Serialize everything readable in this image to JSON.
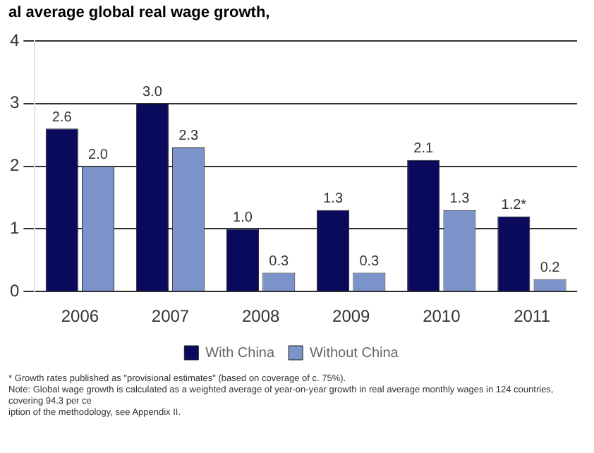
{
  "chart_data": {
    "type": "bar",
    "title": "al average global real wage growth,",
    "categories": [
      "2006",
      "2007",
      "2008",
      "2009",
      "2010",
      "2011"
    ],
    "series": [
      {
        "name": "With China",
        "color": "#0a0a5c",
        "values": [
          2.6,
          3.0,
          1.0,
          1.3,
          2.1,
          1.2
        ],
        "value_labels": [
          "2.6",
          "3.0",
          "1.0",
          "1.3",
          "2.1",
          "1.2*"
        ]
      },
      {
        "name": "Without China",
        "color": "#7b93c9",
        "values": [
          2.0,
          2.3,
          0.3,
          0.3,
          1.3,
          0.2
        ],
        "value_labels": [
          "2.0",
          "2.3",
          "0.3",
          "0.3",
          "1.3",
          "0.2"
        ]
      }
    ],
    "ylim": [
      0,
      4
    ],
    "yticks": [
      0,
      1,
      2,
      3,
      4
    ],
    "grid": "y",
    "legend": "bottom",
    "annotations": [
      "* Growth rates published as \"provisional estimates\" (based on coverage of c. 75%).",
      "Note: Global wage growth is calculated as a weighted average of year-on-year growth in real average monthly wages in 124 countries, covering 94.3 per ce",
      "iption of the methodology, see Appendix II."
    ]
  }
}
